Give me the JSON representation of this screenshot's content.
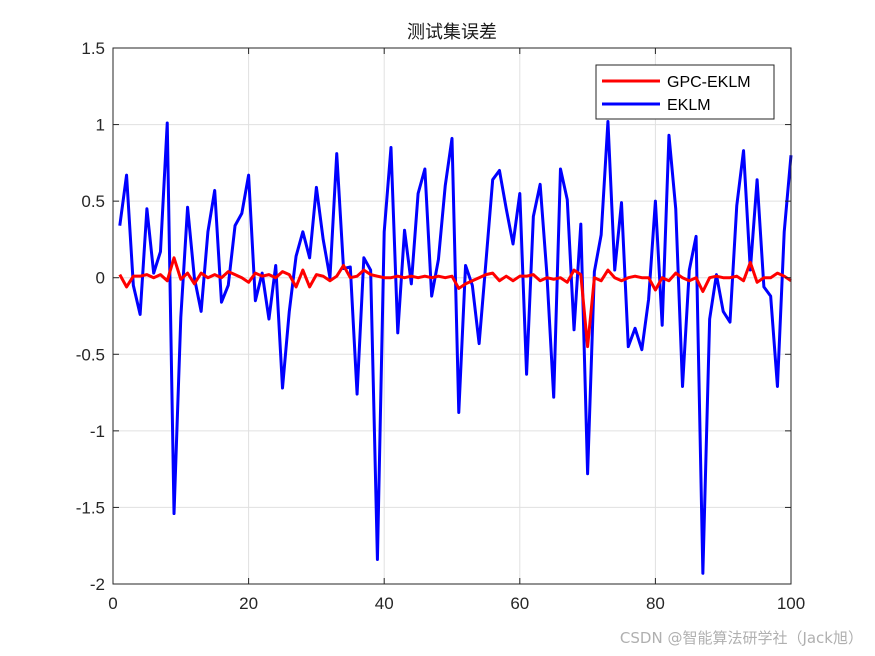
{
  "watermark": "CSDN @智能算法研学社（Jack旭）",
  "chart_data": {
    "type": "line",
    "title": "测试集误差",
    "xlabel": "",
    "ylabel": "",
    "xlim": [
      0,
      100
    ],
    "ylim": [
      -2,
      1.5
    ],
    "xticks": [
      "0",
      "20",
      "40",
      "60",
      "80",
      "100"
    ],
    "yticks": [
      "-2",
      "-1.5",
      "-1",
      "-0.5",
      "0",
      "0.5",
      "1",
      "1.5"
    ],
    "grid": true,
    "legend_position": "top-right",
    "x": [
      1,
      2,
      3,
      4,
      5,
      6,
      7,
      8,
      9,
      10,
      11,
      12,
      13,
      14,
      15,
      16,
      17,
      18,
      19,
      20,
      21,
      22,
      23,
      24,
      25,
      26,
      27,
      28,
      29,
      30,
      31,
      32,
      33,
      34,
      35,
      36,
      37,
      38,
      39,
      40,
      41,
      42,
      43,
      44,
      45,
      46,
      47,
      48,
      49,
      50,
      51,
      52,
      53,
      54,
      55,
      56,
      57,
      58,
      59,
      60,
      61,
      62,
      63,
      64,
      65,
      66,
      67,
      68,
      69,
      70,
      71,
      72,
      73,
      74,
      75,
      76,
      77,
      78,
      79,
      80,
      81,
      82,
      83,
      84,
      85,
      86,
      87,
      88,
      89,
      90,
      91,
      92,
      93,
      94,
      95,
      96,
      97,
      98,
      99,
      100
    ],
    "series": [
      {
        "name": "GPC-EKLM",
        "color": "#ff0000",
        "values": [
          0.02,
          -0.06,
          0.01,
          0.01,
          0.02,
          0.0,
          0.02,
          -0.02,
          0.13,
          -0.01,
          0.03,
          -0.04,
          0.03,
          0.0,
          0.02,
          0.0,
          0.04,
          0.02,
          0.0,
          -0.03,
          0.03,
          0.01,
          0.02,
          0.0,
          0.04,
          0.02,
          -0.06,
          0.05,
          -0.06,
          0.02,
          0.01,
          -0.02,
          0.01,
          0.08,
          0.0,
          0.01,
          0.05,
          0.02,
          0.01,
          0.0,
          0.0,
          0.01,
          0.0,
          0.01,
          0.0,
          0.01,
          0.0,
          0.01,
          0.0,
          0.01,
          -0.07,
          -0.04,
          -0.02,
          0.0,
          0.02,
          0.03,
          -0.02,
          0.01,
          -0.02,
          0.01,
          0.01,
          0.02,
          -0.02,
          0.0,
          -0.01,
          0.0,
          -0.03,
          0.05,
          0.02,
          -0.45,
          0.0,
          -0.02,
          0.05,
          0.0,
          -0.02,
          0.0,
          0.01,
          0.0,
          0.0,
          -0.08,
          0.0,
          -0.02,
          0.03,
          0.0,
          -0.02,
          0.0,
          -0.09,
          0.0,
          0.01,
          0.0,
          0.0,
          0.01,
          -0.02,
          0.1,
          -0.03,
          0.0,
          0.0,
          0.03,
          0.01,
          -0.02
        ]
      },
      {
        "name": "EKLM",
        "color": "#0000ff",
        "values": [
          0.34,
          0.67,
          -0.05,
          -0.24,
          0.45,
          0.03,
          0.17,
          1.01,
          -1.54,
          -0.26,
          0.46,
          0.0,
          -0.22,
          0.3,
          0.57,
          -0.16,
          -0.05,
          0.34,
          0.42,
          0.67,
          -0.15,
          0.03,
          -0.27,
          0.08,
          -0.72,
          -0.22,
          0.14,
          0.3,
          0.13,
          0.59,
          0.25,
          0.0,
          0.81,
          0.06,
          0.07,
          -0.76,
          0.13,
          0.05,
          -1.84,
          0.3,
          0.85,
          -0.36,
          0.31,
          -0.04,
          0.55,
          0.71,
          -0.12,
          0.12,
          0.6,
          0.91,
          -0.88,
          0.08,
          -0.05,
          -0.43,
          0.1,
          0.64,
          0.7,
          0.45,
          0.22,
          0.55,
          -0.63,
          0.4,
          0.61,
          0.02,
          -0.78,
          0.71,
          0.51,
          -0.34,
          0.35,
          -1.28,
          0.04,
          0.28,
          1.02,
          0.05,
          0.49,
          -0.45,
          -0.33,
          -0.47,
          -0.14,
          0.5,
          -0.31,
          0.93,
          0.45,
          -0.71,
          0.05,
          0.27,
          -1.93,
          -0.27,
          0.02,
          -0.22,
          -0.29,
          0.47,
          0.83,
          0.05,
          0.64,
          -0.06,
          -0.12,
          -0.71,
          0.3,
          0.8
        ]
      }
    ]
  }
}
